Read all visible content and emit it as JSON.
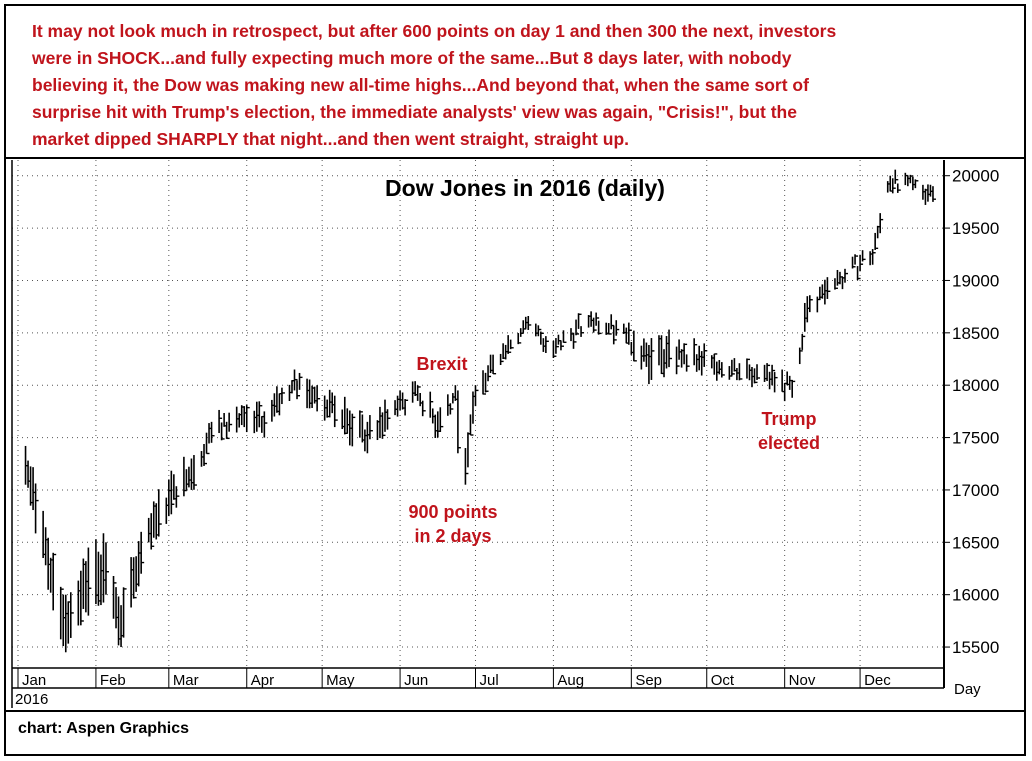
{
  "caption": "It may not look much in retrospect, but after 600 points on day 1 and then 300 the next, investors\nwere in SHOCK...and fully expecting much more of the same...But 8 days later, with nobody\nbelieving it, the Dow was making new all-time highs...And beyond that, when the same sort of\nsurprise hit with Trump's election, the immediate analysts' view was again, \"Crisis!\", but  the\nmarket dipped SHARPLY that night...and then went straight, straight up.",
  "credit": "chart: Aspen Graphics",
  "colors": {
    "annotation": "#c0141c",
    "bars": "#000000",
    "grid": "#555555"
  },
  "chart_data": {
    "type": "bar",
    "title": "Dow Jones in 2016 (daily)",
    "year_label": "2016",
    "x_unit_label": "Day",
    "ylim": [
      15300,
      20150
    ],
    "y_ticks": [
      15500,
      16000,
      16500,
      17000,
      17500,
      18000,
      18500,
      19000,
      19500,
      20000
    ],
    "months": [
      "Jan",
      "Feb",
      "Mar",
      "Apr",
      "May",
      "Jun",
      "Jul",
      "Aug",
      "Sep",
      "Oct",
      "Nov",
      "Dec"
    ],
    "grid": "dotted",
    "annotations": [
      {
        "text": "Brexit",
        "anchor_date": "2016-06-24"
      },
      {
        "text": "900 points\nin 2 days",
        "anchor_date": "2016-06-27"
      },
      {
        "text": "Trump\nelected",
        "anchor_date": "2016-11-04"
      }
    ],
    "series": [
      {
        "date": "2016-01-04",
        "low": 17050,
        "high": 17420
      },
      {
        "date": "2016-01-11",
        "low": 16350,
        "high": 16800
      },
      {
        "date": "2016-01-15",
        "low": 15850,
        "high": 16400
      },
      {
        "date": "2016-01-20",
        "low": 15450,
        "high": 16000
      },
      {
        "date": "2016-01-29",
        "low": 15800,
        "high": 16450
      },
      {
        "date": "2016-02-05",
        "low": 16000,
        "high": 16500
      },
      {
        "date": "2016-02-11",
        "low": 15500,
        "high": 15900
      },
      {
        "date": "2016-02-19",
        "low": 16200,
        "high": 16600
      },
      {
        "date": "2016-03-01",
        "low": 16750,
        "high": 17100
      },
      {
        "date": "2016-03-10",
        "low": 17000,
        "high": 17300
      },
      {
        "date": "2016-03-18",
        "low": 17450,
        "high": 17650
      },
      {
        "date": "2016-03-31",
        "low": 17600,
        "high": 17800
      },
      {
        "date": "2016-04-08",
        "low": 17500,
        "high": 17750
      },
      {
        "date": "2016-04-20",
        "low": 17950,
        "high": 18150
      },
      {
        "date": "2016-04-29",
        "low": 17750,
        "high": 18000
      },
      {
        "date": "2016-05-06",
        "low": 17600,
        "high": 17900
      },
      {
        "date": "2016-05-19",
        "low": 17350,
        "high": 17650
      },
      {
        "date": "2016-05-31",
        "low": 17700,
        "high": 17900
      },
      {
        "date": "2016-06-08",
        "low": 17850,
        "high": 18000
      },
      {
        "date": "2016-06-16",
        "low": 17500,
        "high": 17750
      },
      {
        "date": "2016-06-23",
        "low": 17850,
        "high": 18000
      },
      {
        "date": "2016-06-24",
        "low": 17350,
        "high": 17950
      },
      {
        "date": "2016-06-27",
        "low": 17050,
        "high": 17400
      },
      {
        "date": "2016-07-01",
        "low": 17800,
        "high": 18000
      },
      {
        "date": "2016-07-12",
        "low": 18250,
        "high": 18400
      },
      {
        "date": "2016-07-20",
        "low": 18500,
        "high": 18620
      },
      {
        "date": "2016-08-02",
        "low": 18300,
        "high": 18450
      },
      {
        "date": "2016-08-15",
        "low": 18550,
        "high": 18670
      },
      {
        "date": "2016-08-30",
        "low": 18400,
        "high": 18550
      },
      {
        "date": "2016-09-09",
        "low": 18050,
        "high": 18450
      },
      {
        "date": "2016-09-22",
        "low": 18200,
        "high": 18400
      },
      {
        "date": "2016-10-04",
        "low": 18100,
        "high": 18300
      },
      {
        "date": "2016-10-21",
        "low": 18050,
        "high": 18200
      },
      {
        "date": "2016-11-04",
        "low": 17880,
        "high": 18050
      },
      {
        "date": "2016-11-10",
        "low": 18600,
        "high": 18850
      },
      {
        "date": "2016-11-22",
        "low": 18950,
        "high": 19100
      },
      {
        "date": "2016-12-06",
        "low": 19150,
        "high": 19300
      },
      {
        "date": "2016-12-13",
        "low": 19850,
        "high": 20000
      },
      {
        "date": "2016-12-20",
        "low": 19900,
        "high": 20000
      },
      {
        "date": "2016-12-30",
        "low": 19750,
        "high": 19900
      }
    ]
  }
}
